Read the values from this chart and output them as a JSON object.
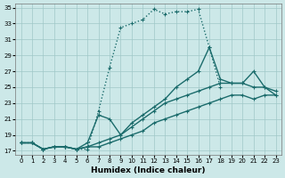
{
  "xlabel": "Humidex (Indice chaleur)",
  "ylabel": "",
  "bg_color": "#cce8e8",
  "grid_color": "#a0c8c8",
  "line_color": "#1a6b6b",
  "xlim": [
    -0.5,
    23.5
  ],
  "ylim": [
    16.5,
    35.5
  ],
  "xticks": [
    0,
    1,
    2,
    3,
    4,
    5,
    6,
    7,
    8,
    9,
    10,
    11,
    12,
    13,
    14,
    15,
    16,
    17,
    18,
    19,
    20,
    21,
    22,
    23
  ],
  "yticks": [
    17,
    19,
    21,
    23,
    25,
    27,
    29,
    31,
    33,
    35
  ],
  "lines": [
    {
      "x": [
        0,
        1,
        2,
        3,
        4,
        5,
        6,
        7,
        8,
        9,
        10,
        11,
        12,
        13,
        14,
        15,
        16,
        17,
        18
      ],
      "y": [
        18,
        18,
        17.2,
        17.5,
        17.5,
        17.2,
        17.2,
        22.0,
        27.5,
        32.5,
        33.0,
        33.5,
        34.8,
        34.2,
        34.5,
        34.5,
        34.8,
        30.0,
        25.0
      ],
      "style": "dotted",
      "lw": 1.0
    },
    {
      "x": [
        0,
        1,
        2,
        3,
        4,
        5,
        6,
        7,
        8,
        9,
        10,
        11,
        12,
        13,
        14,
        15,
        16,
        17,
        18,
        19,
        20,
        21,
        22,
        23
      ],
      "y": [
        18,
        18,
        17.2,
        17.5,
        17.5,
        17.2,
        18.0,
        21.5,
        21.0,
        19.0,
        20.5,
        21.5,
        22.5,
        23.5,
        25.0,
        26.0,
        27.0,
        30.0,
        26.0,
        25.5,
        25.5,
        27.0,
        25.0,
        24.0
      ],
      "style": "solid",
      "lw": 1.0
    },
    {
      "x": [
        0,
        1,
        2,
        3,
        4,
        5,
        6,
        7,
        8,
        9,
        10,
        11,
        12,
        13,
        14,
        15,
        16,
        17,
        18,
        19,
        20,
        21,
        22,
        23
      ],
      "y": [
        18,
        18,
        17.2,
        17.5,
        17.5,
        17.2,
        17.5,
        18.0,
        18.5,
        19.0,
        20.0,
        21.0,
        22.0,
        23.0,
        23.5,
        24.0,
        24.5,
        25.0,
        25.5,
        25.5,
        25.5,
        25.0,
        25.0,
        24.5
      ],
      "style": "solid",
      "lw": 1.0
    },
    {
      "x": [
        0,
        1,
        2,
        3,
        4,
        5,
        6,
        7,
        8,
        9,
        10,
        11,
        12,
        13,
        14,
        15,
        16,
        17,
        18,
        19,
        20,
        21,
        22,
        23
      ],
      "y": [
        18,
        18,
        17.2,
        17.5,
        17.5,
        17.2,
        17.5,
        17.5,
        18.0,
        18.5,
        19.0,
        19.5,
        20.5,
        21.0,
        21.5,
        22.0,
        22.5,
        23.0,
        23.5,
        24.0,
        24.0,
        23.5,
        24.0,
        24.0
      ],
      "style": "solid",
      "lw": 1.0
    }
  ]
}
